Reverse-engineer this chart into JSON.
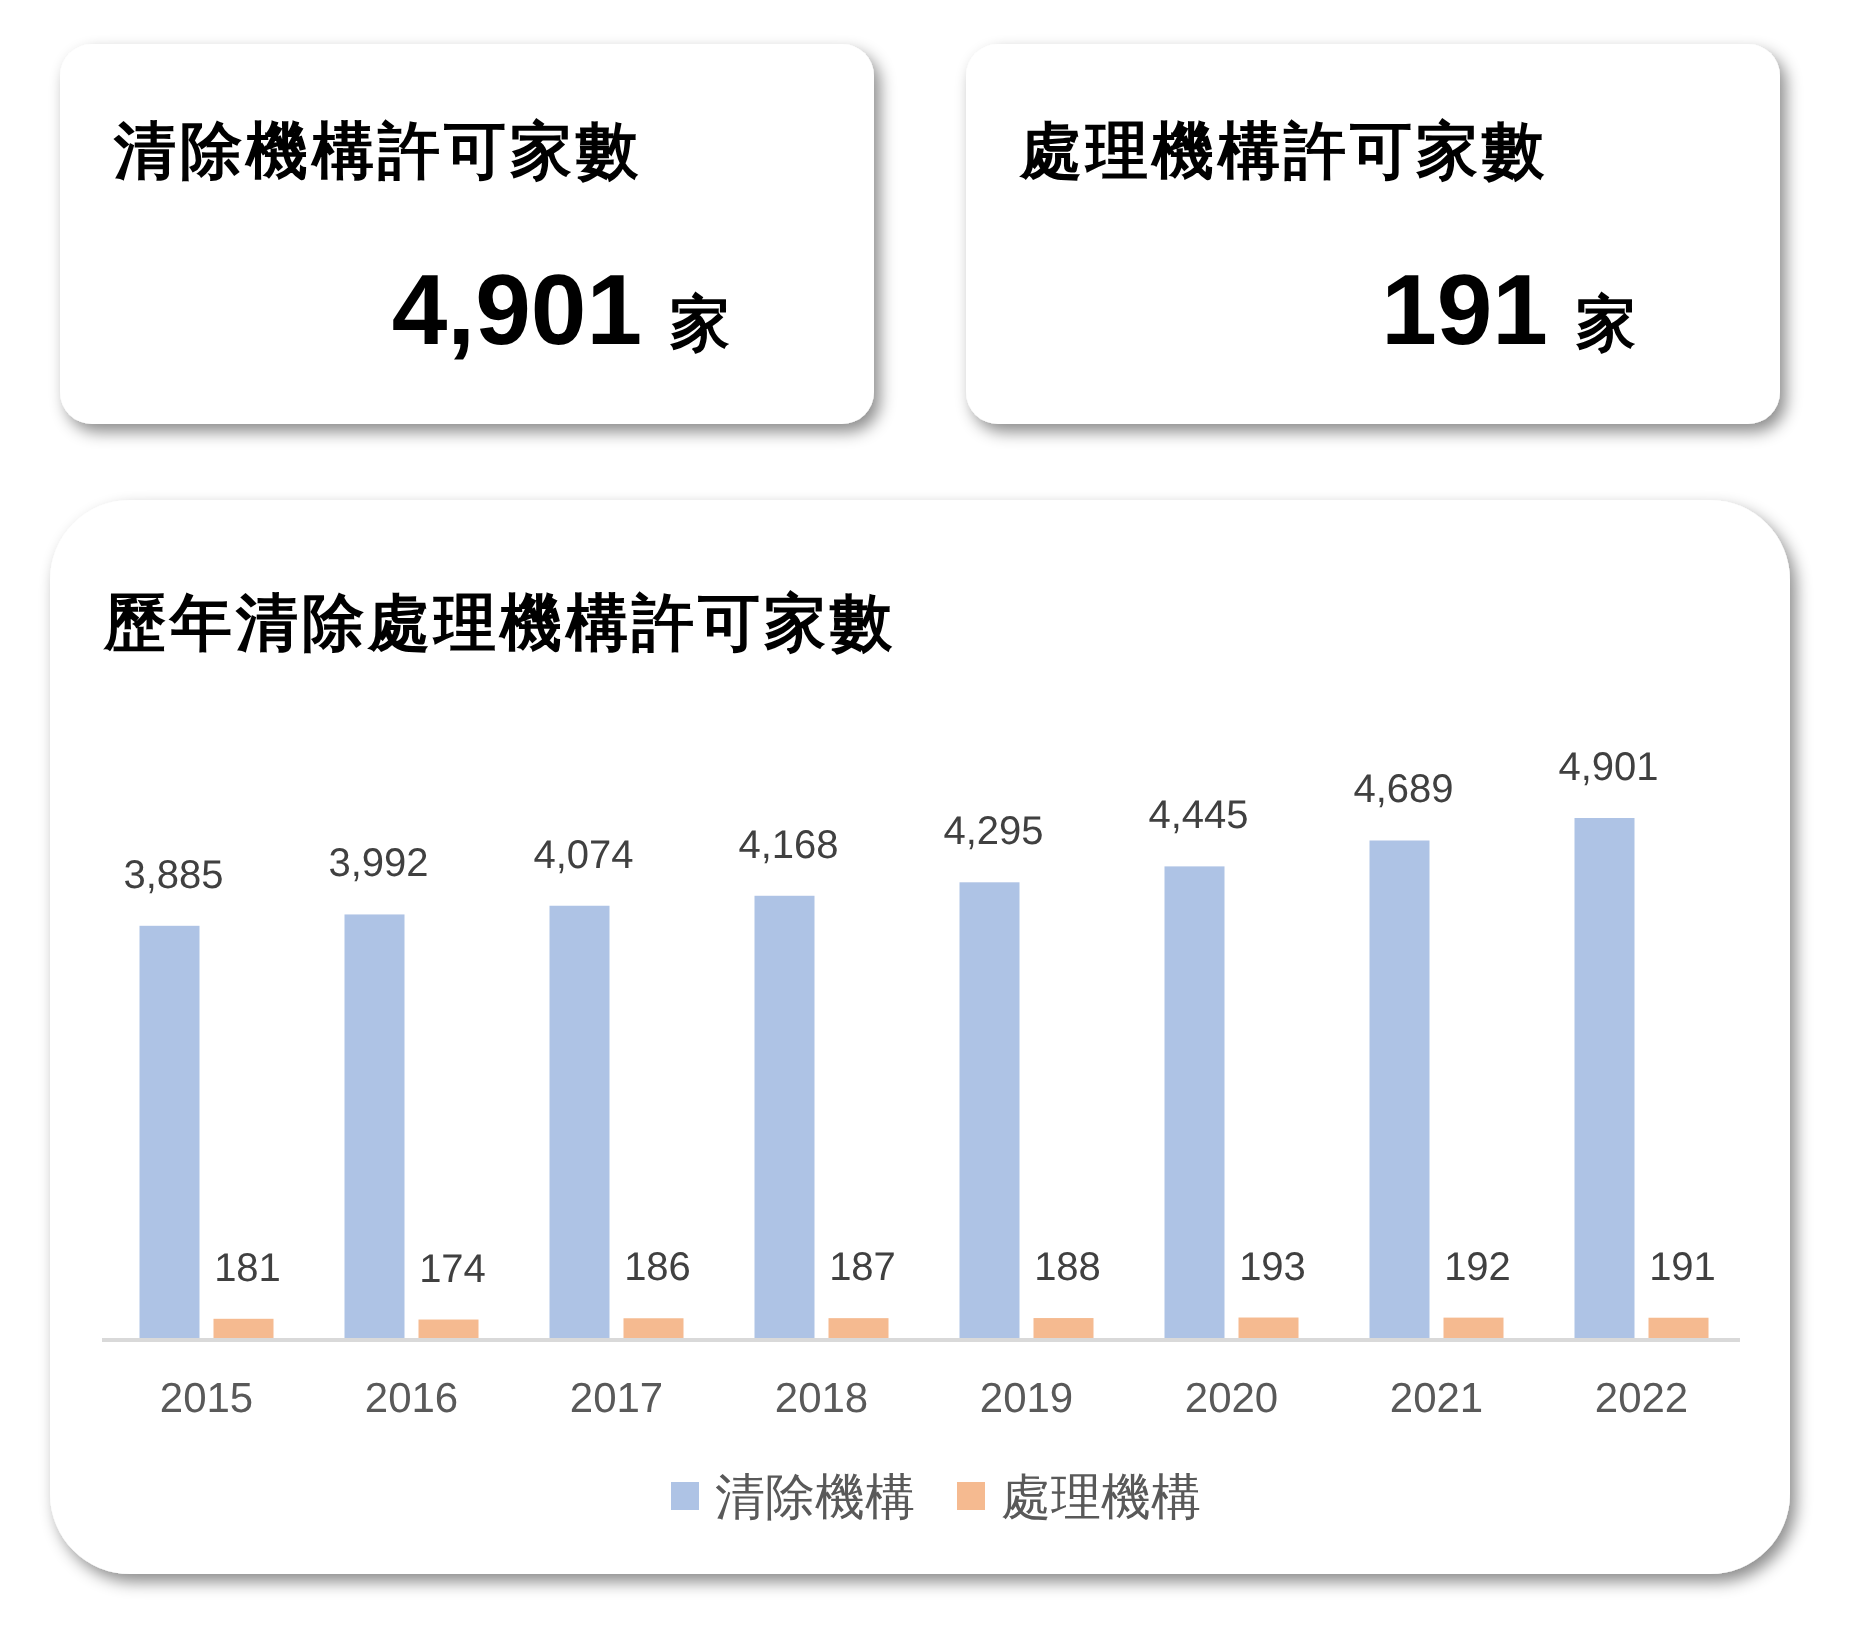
{
  "chart_data": [
    {
      "type": "other",
      "title": "清除機構許可家數",
      "annotations": [
        "4,901",
        "家"
      ]
    },
    {
      "type": "other",
      "title": "處理機構許可家數",
      "annotations": [
        "191",
        "家"
      ]
    },
    {
      "type": "bar",
      "title": "歷年清除處理機構許可家數",
      "categories": [
        "2015",
        "2016",
        "2017",
        "2018",
        "2019",
        "2020",
        "2021",
        "2022"
      ],
      "series": [
        {
          "name": "清除機構",
          "color": "#aec3e5",
          "values": [
            3885,
            3992,
            4074,
            4168,
            4295,
            4445,
            4689,
            4901
          ],
          "value_labels": [
            "3,885",
            "3,992",
            "4,074",
            "4,168",
            "4,295",
            "4,445",
            "4,689",
            "4,901"
          ]
        },
        {
          "name": "處理機構",
          "color": "#f5ba90",
          "values": [
            181,
            174,
            186,
            187,
            188,
            193,
            192,
            191
          ],
          "value_labels": [
            "181",
            "174",
            "186",
            "187",
            "188",
            "193",
            "192",
            "191"
          ]
        }
      ],
      "legend": "bottom"
    }
  ]
}
